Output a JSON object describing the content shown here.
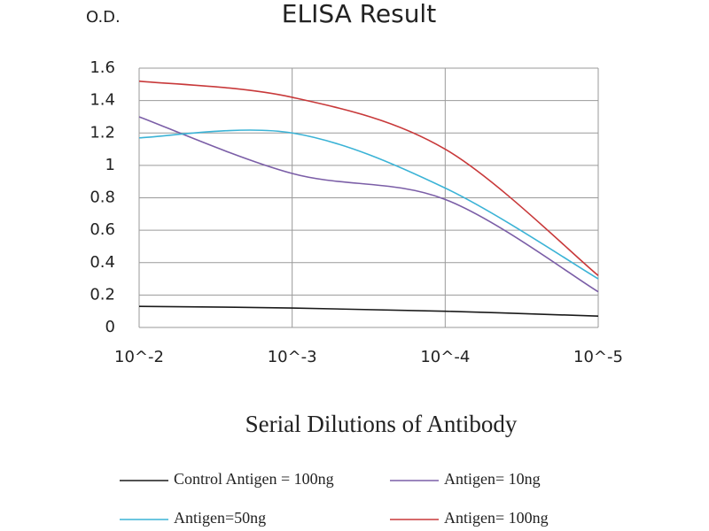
{
  "chart_data": {
    "type": "line",
    "title": "ELISA Result",
    "y_label": "O.D.",
    "x_label": "Serial Dilutions of Antibody",
    "categories": [
      "10^-2",
      "10^-3",
      "10^-4",
      "10^-5"
    ],
    "series": [
      {
        "name": "Control Antigen = 100ng",
        "color": "#1a1a1a",
        "values": [
          0.13,
          0.12,
          0.1,
          0.07
        ]
      },
      {
        "name": "Antigen= 10ng",
        "color": "#7b5ea7",
        "values": [
          1.3,
          0.95,
          0.79,
          0.22
        ]
      },
      {
        "name": "Antigen=50ng",
        "color": "#3bb3d6",
        "values": [
          1.17,
          1.2,
          0.86,
          0.3
        ]
      },
      {
        "name": "Antigen= 100ng",
        "color": "#c8393a",
        "values": [
          1.52,
          1.42,
          1.1,
          0.32
        ]
      }
    ],
    "ylim": [
      0,
      1.6
    ],
    "yticks": [
      0,
      0.2,
      0.4,
      0.6,
      0.8,
      1,
      1.2,
      1.4,
      1.6
    ],
    "grid": true,
    "smooth": true
  }
}
